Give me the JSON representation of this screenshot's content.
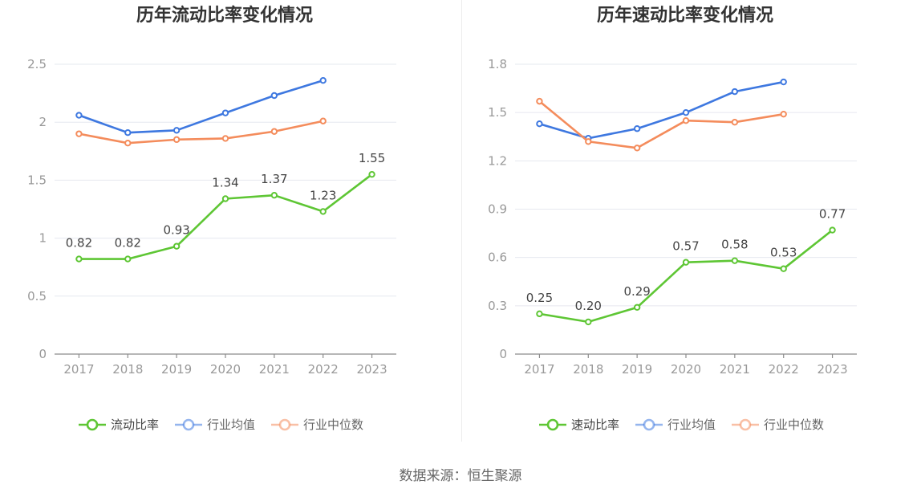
{
  "source": "数据来源：恒生聚源",
  "chart_data": [
    {
      "type": "line",
      "title": "历年流动比率变化情况",
      "categories": [
        "2017",
        "2018",
        "2019",
        "2020",
        "2021",
        "2022",
        "2023"
      ],
      "ylim": [
        0,
        2.5
      ],
      "yticks": [
        0,
        0.5,
        1,
        1.5,
        2,
        2.5
      ],
      "ytick_labels": [
        "0",
        "0.5",
        "1",
        "1.5",
        "2",
        "2.5"
      ],
      "grid": true,
      "legend_position": "bottom",
      "series": [
        {
          "name": "流动比率",
          "color": "#5ec634",
          "values": [
            0.82,
            0.82,
            0.93,
            1.34,
            1.37,
            1.23,
            1.55
          ],
          "labels": [
            "0.82",
            "0.82",
            "0.93",
            "1.34",
            "1.37",
            "1.23",
            "1.55"
          ]
        },
        {
          "name": "行业均值",
          "color": "#3e78e0",
          "values": [
            2.06,
            1.91,
            1.93,
            2.08,
            2.23,
            2.36,
            null
          ]
        },
        {
          "name": "行业中位数",
          "color": "#f48c5c",
          "values": [
            1.9,
            1.82,
            1.85,
            1.86,
            1.92,
            2.01,
            null
          ]
        }
      ]
    },
    {
      "type": "line",
      "title": "历年速动比率变化情况",
      "categories": [
        "2017",
        "2018",
        "2019",
        "2020",
        "2021",
        "2022",
        "2023"
      ],
      "ylim": [
        0,
        1.8
      ],
      "yticks": [
        0,
        0.3,
        0.6,
        0.9,
        1.2,
        1.5,
        1.8
      ],
      "ytick_labels": [
        "0",
        "0.3",
        "0.6",
        "0.9",
        "1.2",
        "1.5",
        "1.8"
      ],
      "grid": true,
      "legend_position": "bottom",
      "series": [
        {
          "name": "速动比率",
          "color": "#5ec634",
          "values": [
            0.25,
            0.2,
            0.29,
            0.57,
            0.58,
            0.53,
            0.77
          ],
          "labels": [
            "0.25",
            "0.20",
            "0.29",
            "0.57",
            "0.58",
            "0.53",
            "0.77"
          ]
        },
        {
          "name": "行业均值",
          "color": "#3e78e0",
          "values": [
            1.43,
            1.34,
            1.4,
            1.5,
            1.63,
            1.69,
            null
          ]
        },
        {
          "name": "行业中位数",
          "color": "#f48c5c",
          "values": [
            1.57,
            1.32,
            1.28,
            1.45,
            1.44,
            1.49,
            null
          ]
        }
      ]
    }
  ]
}
